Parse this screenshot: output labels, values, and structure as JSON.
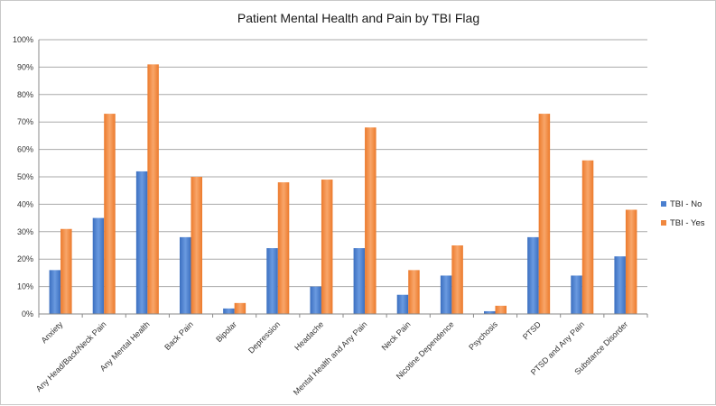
{
  "chart_data": {
    "type": "bar",
    "title": "Patient Mental Health and Pain by TBI Flag",
    "xlabel": "",
    "ylabel": "",
    "ylim": [
      0,
      100
    ],
    "y_ticks": [
      "0%",
      "10%",
      "20%",
      "30%",
      "40%",
      "50%",
      "60%",
      "70%",
      "80%",
      "90%",
      "100%"
    ],
    "grid": true,
    "legend_position": "right",
    "categories": [
      "Anxiety",
      "Any Head/Back/Neck Pain",
      "Any Mental Health",
      "Back Pain",
      "Bipolar",
      "Depression",
      "Headache",
      "Mental Health and Any Pain",
      "Neck Pain",
      "Nicotine Dependence",
      "Psychosis",
      "PTSD",
      "PTSD and Any Pain",
      "Substance Disorder"
    ],
    "series": [
      {
        "name": "TBI - No",
        "color": "#4a7fcf",
        "values": [
          16,
          35,
          52,
          28,
          2,
          24,
          10,
          24,
          7,
          14,
          1,
          28,
          14,
          21
        ]
      },
      {
        "name": "TBI - Yes",
        "color": "#f0883f",
        "values": [
          31,
          73,
          91,
          50,
          4,
          48,
          49,
          68,
          16,
          25,
          3,
          73,
          56,
          38
        ]
      }
    ]
  }
}
